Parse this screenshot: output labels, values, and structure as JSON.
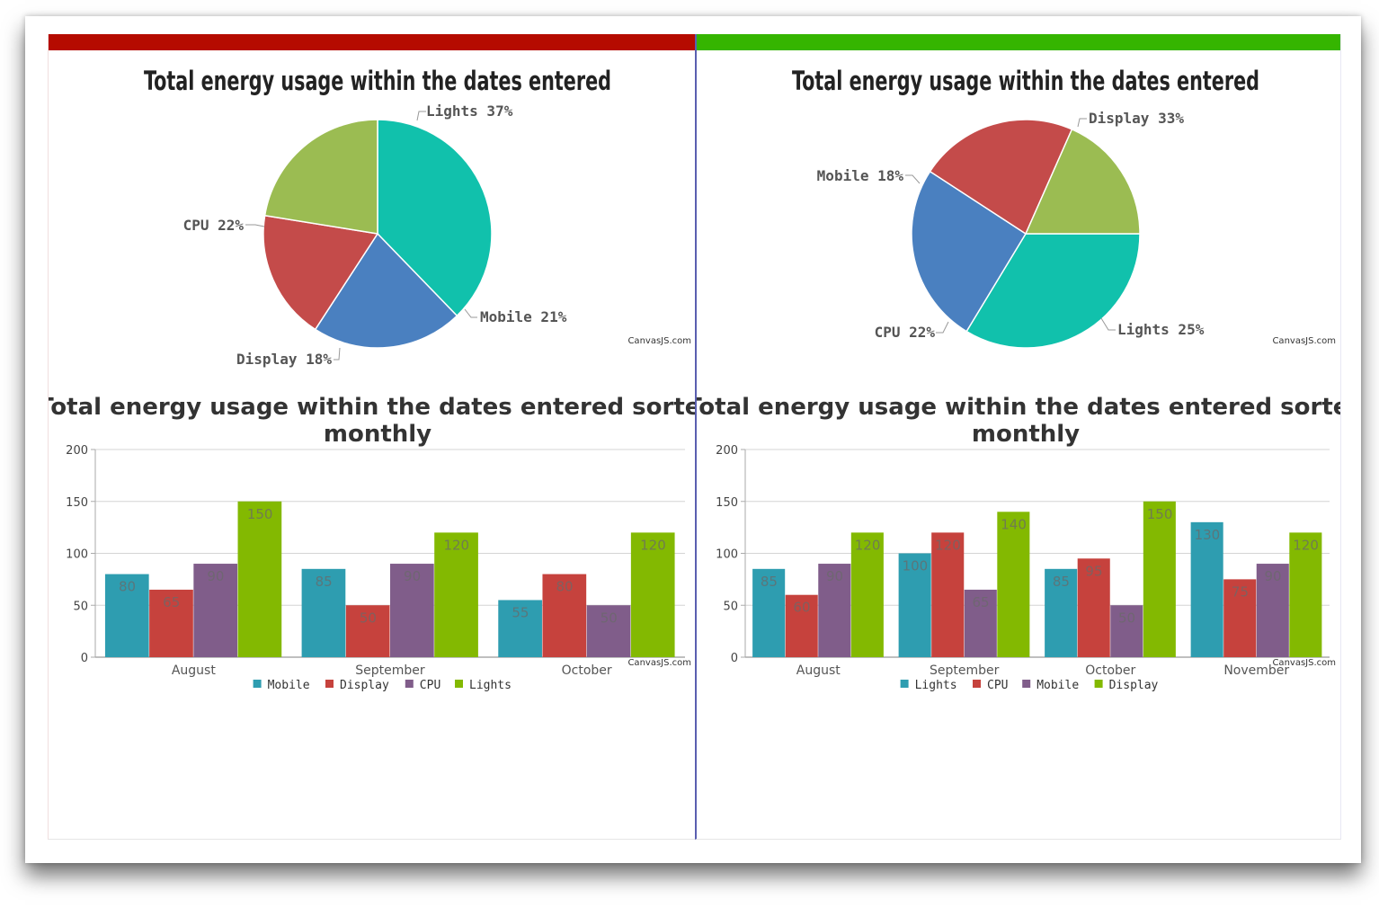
{
  "panels": [
    {
      "id": "left",
      "bar_color": "#b50b00",
      "credit": "CanvasJS.com",
      "pie": {
        "type": "pie",
        "title": "Total energy usage within the dates entered",
        "slices": [
          {
            "label": "Lights",
            "value": 37,
            "text": "Lights 37%",
            "color": "#11c1ac"
          },
          {
            "label": "Mobile",
            "value": 21,
            "text": "Mobile 21%",
            "color": "#4a80c0"
          },
          {
            "label": "Display",
            "value": 18,
            "text": "Display 18%",
            "color": "#c44b4a"
          },
          {
            "label": "CPU",
            "value": 22,
            "text": "CPU 22%",
            "color": "#9bbc52"
          }
        ]
      },
      "bar": {
        "type": "bar",
        "title_line1": "Total energy usage within the dates entered sorted",
        "title_line2": "monthly",
        "ylim": [
          0,
          200
        ],
        "yticks": [
          "0",
          "50",
          "100",
          "150",
          "200"
        ],
        "categories": [
          "August",
          "September",
          "October"
        ],
        "series": [
          {
            "name": "Mobile",
            "color": "#2e9db0",
            "values": [
              80,
              85,
              55
            ],
            "labels": [
              "80",
              "85",
              "55"
            ]
          },
          {
            "name": "Display",
            "color": "#c6423d",
            "values": [
              65,
              50,
              80
            ],
            "labels": [
              "65",
              "50",
              "80"
            ]
          },
          {
            "name": "CPU",
            "color": "#805d8a",
            "values": [
              90,
              90,
              50
            ],
            "labels": [
              "90",
              "90",
              "50"
            ]
          },
          {
            "name": "Lights",
            "color": "#83b901",
            "values": [
              150,
              120,
              120
            ],
            "labels": [
              "150",
              "120",
              "120"
            ]
          }
        ]
      }
    },
    {
      "id": "right",
      "bar_color": "#35b500",
      "credit": "CanvasJS.com",
      "pie": {
        "type": "pie",
        "title": "Total energy usage within the dates entered",
        "slices": [
          {
            "label": "Display",
            "value": 33,
            "text": "Display 33%",
            "color": "#11c1ac"
          },
          {
            "label": "Lights",
            "value": 25,
            "text": "Lights 25%",
            "color": "#4a80c0"
          },
          {
            "label": "CPU",
            "value": 22,
            "text": "CPU 22%",
            "color": "#c44b4a"
          },
          {
            "label": "Mobile",
            "value": 18,
            "text": "Mobile 18%",
            "color": "#9bbc52"
          }
        ]
      },
      "bar": {
        "type": "bar",
        "title_line1": "Total energy usage within the dates entered sorted",
        "title_line2": "monthly",
        "ylim": [
          0,
          200
        ],
        "yticks": [
          "0",
          "50",
          "100",
          "150",
          "200"
        ],
        "categories": [
          "August",
          "September",
          "October",
          "November"
        ],
        "series": [
          {
            "name": "Lights",
            "color": "#2e9db0",
            "values": [
              85,
              100,
              85,
              130
            ],
            "labels": [
              "85",
              "100",
              "85",
              "130"
            ]
          },
          {
            "name": "CPU",
            "color": "#c6423d",
            "values": [
              60,
              120,
              95,
              75
            ],
            "labels": [
              "60",
              "120",
              "95",
              "75"
            ]
          },
          {
            "name": "Mobile",
            "color": "#805d8a",
            "values": [
              90,
              65,
              50,
              90
            ],
            "labels": [
              "90",
              "65",
              "50",
              "90"
            ]
          },
          {
            "name": "Display",
            "color": "#83b901",
            "values": [
              120,
              140,
              150,
              120
            ],
            "labels": [
              "120",
              "140",
              "150",
              "120"
            ]
          }
        ]
      }
    }
  ]
}
